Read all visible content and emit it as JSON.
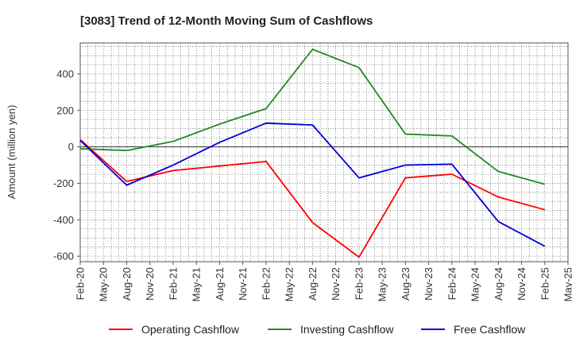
{
  "chart_data": {
    "type": "line",
    "title": "[3083]  Trend of 12-Month Moving Sum of Cashflows",
    "ylabel": "Amount (million yen)",
    "xlabel": "",
    "categories": [
      "Feb-20",
      "May-20",
      "Aug-20",
      "Nov-20",
      "Feb-21",
      "May-21",
      "Aug-21",
      "Nov-21",
      "Feb-22",
      "May-22",
      "Aug-22",
      "Nov-22",
      "Feb-23",
      "May-23",
      "Aug-23",
      "Nov-23",
      "Feb-24",
      "May-24",
      "Aug-24",
      "Nov-24",
      "Feb-25",
      "May-25"
    ],
    "x_range": [
      "Feb-20",
      "May-25"
    ],
    "ylim": [
      -630,
      570
    ],
    "yticks": [
      -600,
      -400,
      -200,
      0,
      200,
      400
    ],
    "grid": true,
    "legend_position": "bottom",
    "series": [
      {
        "name": "Operating Cashflow",
        "color": "#ff0000",
        "x": [
          "Feb-20",
          "Aug-20",
          "Feb-21",
          "Aug-21",
          "Feb-22",
          "Aug-22",
          "Feb-23",
          "Aug-23",
          "Feb-24",
          "Aug-24",
          "Feb-25"
        ],
        "values": [
          40,
          -190,
          -130,
          -105,
          -80,
          -415,
          -605,
          -170,
          -150,
          -275,
          -345
        ]
      },
      {
        "name": "Investing Cashflow",
        "color": "#228b22",
        "x": [
          "Feb-20",
          "Aug-20",
          "Feb-21",
          "Aug-21",
          "Feb-22",
          "Aug-22",
          "Feb-23",
          "Aug-23",
          "Feb-24",
          "Aug-24",
          "Feb-25"
        ],
        "values": [
          -10,
          -20,
          30,
          125,
          210,
          535,
          435,
          70,
          60,
          -135,
          -205
        ]
      },
      {
        "name": "Free Cashflow",
        "color": "#0000dd",
        "x": [
          "Feb-20",
          "Aug-20",
          "Feb-21",
          "Aug-21",
          "Feb-22",
          "Aug-22",
          "Feb-23",
          "Aug-23",
          "Feb-24",
          "Aug-24",
          "Feb-25"
        ],
        "values": [
          35,
          -210,
          -100,
          25,
          130,
          120,
          -170,
          -100,
          -95,
          -410,
          -545
        ]
      }
    ]
  }
}
